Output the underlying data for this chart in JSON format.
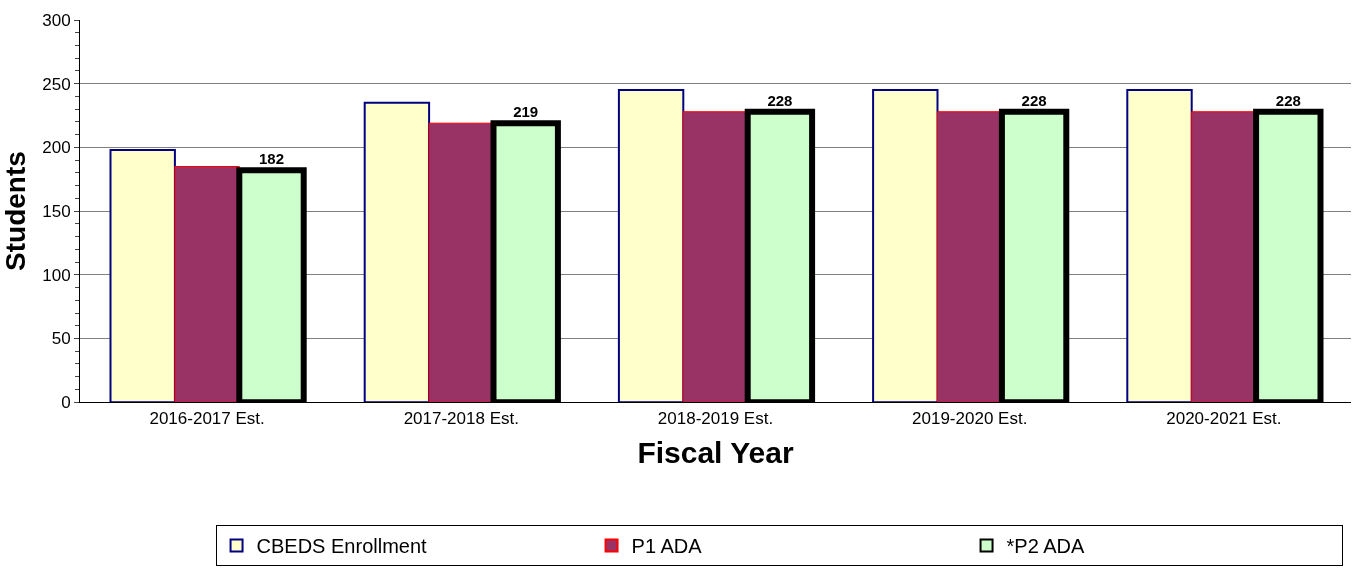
{
  "chart_data": {
    "type": "bar",
    "xlabel": "Fiscal Year",
    "ylabel": "Students",
    "categories": [
      "2016-2017 Est.",
      "2017-2018 Est.",
      "2018-2019 Est.",
      "2019-2020 Est.",
      "2020-2021 Est."
    ],
    "series": [
      {
        "name": "CBEDS Enrollment",
        "color": "#ffffcc",
        "values": [
          198,
          235,
          245,
          245,
          245
        ]
      },
      {
        "name": "P1 ADA",
        "color": "#993366",
        "values": [
          185,
          219,
          228,
          228,
          228
        ]
      },
      {
        "name": "*P2 ADA",
        "color": "#ccffcc",
        "values": [
          182,
          219,
          228,
          228,
          228
        ],
        "value_labels": [
          "182",
          "219",
          "228",
          "228",
          "228"
        ]
      }
    ],
    "ylim": [
      0,
      300
    ],
    "yticks": [
      0,
      50,
      100,
      150,
      200,
      250,
      300
    ],
    "grid": "y",
    "legend": "bottom"
  }
}
